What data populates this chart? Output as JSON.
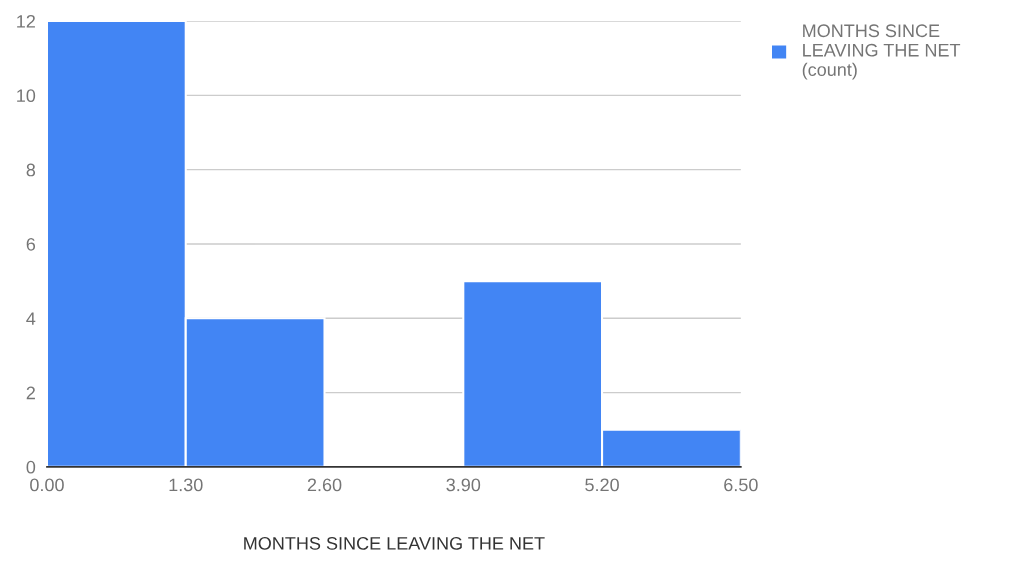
{
  "chart_data": {
    "type": "histogram",
    "xlabel": "MONTHS SINCE LEAVING THE NET",
    "bins": [
      0,
      1.3,
      2.6,
      3.9,
      5.2,
      6.5
    ],
    "series": [
      {
        "name": "MONTHS SINCE LEAVING THE NET (count)",
        "color": "#4285f4",
        "values": [
          12,
          4,
          0,
          5,
          1
        ]
      }
    ],
    "xlim": [
      0,
      6.5
    ],
    "xticks": [
      {
        "value": 0,
        "label": "0.00"
      },
      {
        "value": 1.3,
        "label": "1.30"
      },
      {
        "value": 2.6,
        "label": "2.60"
      },
      {
        "value": 3.9,
        "label": "3.90"
      },
      {
        "value": 5.2,
        "label": "5.20"
      },
      {
        "value": 6.5,
        "label": "6.50"
      }
    ],
    "ylim": [
      0,
      12
    ],
    "yticks": [
      0,
      2,
      4,
      6,
      8,
      10,
      12
    ],
    "grid": "y",
    "legend": "top right"
  }
}
